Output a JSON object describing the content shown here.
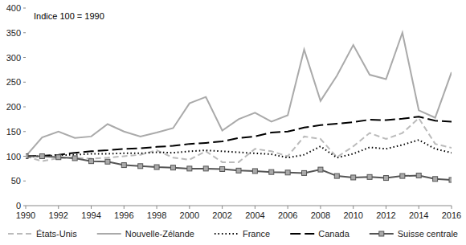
{
  "chart_data": {
    "type": "line",
    "annotations": [
      "Indice 100 = 1990"
    ],
    "x": [
      1990,
      1991,
      1992,
      1993,
      1994,
      1995,
      1996,
      1997,
      1998,
      1999,
      2000,
      2001,
      2002,
      2003,
      2004,
      2005,
      2006,
      2007,
      2008,
      2009,
      2010,
      2011,
      2012,
      2013,
      2014,
      2015,
      2016
    ],
    "xlim": [
      1990,
      2016
    ],
    "xticks": [
      1990,
      1992,
      1994,
      1996,
      1998,
      2000,
      2002,
      2004,
      2006,
      2008,
      2010,
      2012,
      2014,
      2016
    ],
    "ylim": [
      0,
      400
    ],
    "yticks": [
      0,
      50,
      100,
      150,
      200,
      250,
      300,
      350,
      400
    ],
    "grid": false,
    "legend": "bottom",
    "series": [
      {
        "name": "États-Unis",
        "color": "#bbbbbb",
        "line_style": "dashed",
        "values": [
          100,
          90,
          96,
          97,
          95,
          97,
          100,
          103,
          112,
          97,
          93,
          110,
          88,
          88,
          115,
          110,
          100,
          140,
          135,
          98,
          120,
          147,
          135,
          147,
          177,
          125,
          117
        ]
      },
      {
        "name": "Nouvelle-Zélande",
        "color": "#aaaaaa",
        "line_style": "solid",
        "values": [
          100,
          138,
          150,
          137,
          140,
          165,
          150,
          140,
          148,
          157,
          207,
          220,
          152,
          175,
          188,
          170,
          183,
          316,
          212,
          263,
          325,
          265,
          256,
          350,
          193,
          178,
          270
        ]
      },
      {
        "name": "France",
        "color": "#000000",
        "line_style": "dotted",
        "values": [
          100,
          100,
          102,
          103,
          105,
          105,
          106,
          106,
          108,
          107,
          110,
          112,
          110,
          108,
          106,
          104,
          97,
          103,
          120,
          97,
          105,
          118,
          115,
          123,
          133,
          115,
          107
        ]
      },
      {
        "name": "Canada",
        "color": "#000000",
        "line_style": "longdash",
        "values": [
          100,
          101,
          103,
          107,
          110,
          112,
          115,
          116,
          119,
          121,
          125,
          127,
          130,
          137,
          140,
          148,
          150,
          158,
          163,
          166,
          169,
          174,
          173,
          176,
          180,
          172,
          170
        ]
      },
      {
        "name": "Suisse centrale",
        "color": "#555555",
        "line_style": "solid",
        "marker": "square",
        "values": [
          100,
          100,
          98,
          96,
          90,
          89,
          82,
          80,
          78,
          77,
          75,
          75,
          74,
          71,
          70,
          68,
          67,
          66,
          73,
          60,
          57,
          58,
          56,
          60,
          61,
          54,
          52
        ]
      }
    ]
  }
}
